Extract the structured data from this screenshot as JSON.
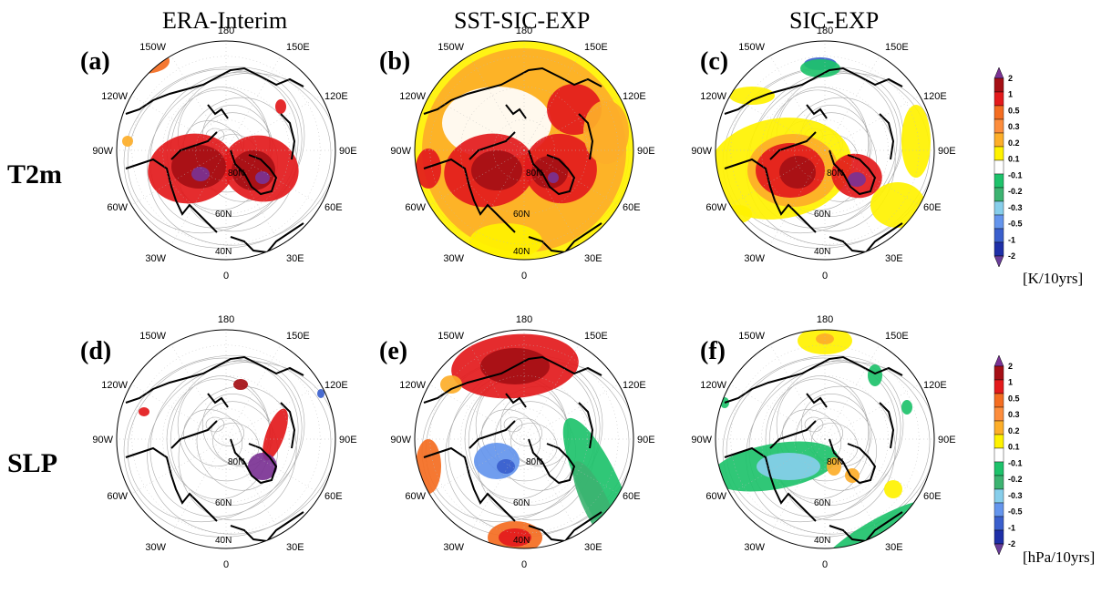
{
  "columns": [
    "ERA-Interim",
    "SST-SIC-EXP",
    "SIC-EXP"
  ],
  "rows": [
    "T2m",
    "SLP"
  ],
  "panels": [
    {
      "label": "(a)",
      "row": 0,
      "col": 0,
      "pattern": "era_t2m"
    },
    {
      "label": "(b)",
      "row": 0,
      "col": 1,
      "pattern": "sst_t2m"
    },
    {
      "label": "(c)",
      "row": 0,
      "col": 2,
      "pattern": "sic_t2m"
    },
    {
      "label": "(d)",
      "row": 1,
      "col": 0,
      "pattern": "era_slp"
    },
    {
      "label": "(e)",
      "row": 1,
      "col": 1,
      "pattern": "sst_slp"
    },
    {
      "label": "(f)",
      "row": 1,
      "col": 2,
      "pattern": "sic_slp"
    }
  ],
  "longitude_labels": {
    "top": "180",
    "bottom": "0",
    "upper_left": "150W",
    "upper_right": "150E",
    "left_upper": "120W",
    "right_upper": "120E",
    "left": "90W",
    "right": "90E",
    "left_lower": "60W",
    "right_lower": "60E",
    "lower_left": "30W",
    "lower_right": "30E"
  },
  "latitude_labels": [
    "80N",
    "60N",
    "40N"
  ],
  "colorbar": {
    "ticks": [
      "2",
      "1",
      "0.5",
      "0.3",
      "0.2",
      "0.1",
      "-0.1",
      "-0.2",
      "-0.3",
      "-0.5",
      "-1",
      "-2"
    ],
    "colors": [
      "#7b3294",
      "#a50f15",
      "#e31a1c",
      "#f46d21",
      "#fd8d3c",
      "#fdae29",
      "#fff200",
      "#ffffff",
      "#1ec26b",
      "#3cb371",
      "#87ceeb",
      "#6495ed",
      "#3a5fcd",
      "#1e2fa8",
      "#6a3d9a"
    ]
  },
  "units": [
    "[K/10yrs]",
    "[hPa/10yrs]"
  ]
}
